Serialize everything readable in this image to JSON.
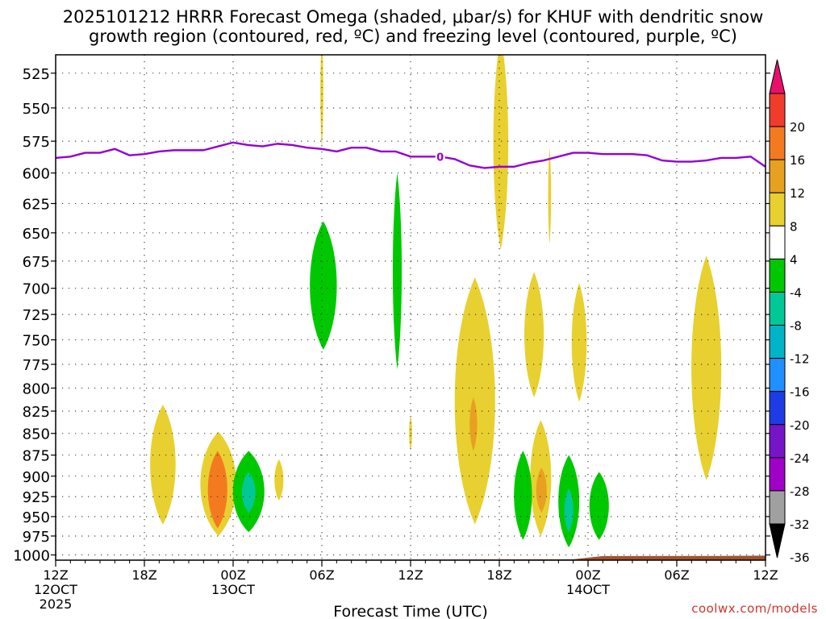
{
  "title_line1": "2025101212 HRRR Forecast Omega (shaded, μbar/s) for KHUF with dendritic snow",
  "title_line2": "growth region (contoured, red, ºC) and freezing level (contoured, purple, ºC)",
  "credit": "coolwx.com/models",
  "chart_data": {
    "type": "heatmap",
    "title": "2025101212 HRRR Forecast Omega (shaded, μbar/s) for KHUF with dendritic snow growth region (contoured, red, ºC) and freezing level (contoured, purple, ºC)",
    "xlabel": "Forecast Time (UTC)",
    "ylabel": "",
    "xlim": [
      0,
      48
    ],
    "ylim_pressure_mb": [
      1000,
      500
    ],
    "x_ticks": [
      {
        "hour": 0,
        "lines": [
          "12Z",
          "12OCT",
          "2025"
        ]
      },
      {
        "hour": 6,
        "lines": [
          "18Z"
        ]
      },
      {
        "hour": 12,
        "lines": [
          "00Z",
          "13OCT"
        ]
      },
      {
        "hour": 18,
        "lines": [
          "06Z"
        ]
      },
      {
        "hour": 24,
        "lines": [
          "12Z"
        ]
      },
      {
        "hour": 30,
        "lines": [
          "18Z"
        ]
      },
      {
        "hour": 36,
        "lines": [
          "00Z",
          "14OCT"
        ]
      },
      {
        "hour": 42,
        "lines": [
          "06Z"
        ]
      },
      {
        "hour": 48,
        "lines": [
          "12Z"
        ]
      }
    ],
    "y_ticks": [
      "525",
      "550",
      "575",
      "600",
      "625",
      "650",
      "675",
      "700",
      "725",
      "750",
      "775",
      "800",
      "825",
      "850",
      "875",
      "900",
      "925",
      "950",
      "975",
      "1000"
    ],
    "colorbar": {
      "labels": [
        "20",
        "16",
        "12",
        "8",
        "4",
        "-4",
        "-8",
        "-12",
        "-16",
        "-20",
        "-24",
        "-28",
        "-32",
        "-36"
      ],
      "colors": [
        "#e8106a",
        "#f03c2c",
        "#f47a20",
        "#e8a020",
        "#e8d030",
        "#ffffff",
        "#00c800",
        "#00c896",
        "#00b4c8",
        "#1e90ff",
        "#1e3ce6",
        "#7814c8",
        "#a000c8",
        "#a0a0a0",
        "#000000"
      ]
    },
    "freezing_level": {
      "label": "0",
      "color": "#9400d3",
      "hours": [
        0,
        1,
        2,
        3,
        4,
        5,
        6,
        7,
        8,
        9,
        10,
        11,
        12,
        13,
        14,
        15,
        16,
        17,
        18,
        19,
        20,
        21,
        22,
        23,
        24,
        25,
        26,
        27,
        28,
        29,
        30,
        31,
        32,
        33,
        34,
        35,
        36,
        37,
        38,
        39,
        40,
        41,
        42,
        43,
        44,
        45,
        46,
        47,
        48
      ],
      "pressure": [
        588,
        587,
        584,
        584,
        581,
        586,
        585,
        583,
        582,
        582,
        582,
        579,
        576,
        578,
        579,
        577,
        578,
        580,
        581,
        583,
        580,
        580,
        583,
        583,
        587,
        587,
        587,
        589,
        594,
        596,
        595,
        595,
        592,
        590,
        587,
        584,
        584,
        585,
        585,
        585,
        586,
        590,
        591,
        591,
        590,
        588,
        588,
        587,
        595
      ]
    },
    "omega_regions": [
      {
        "value": 4,
        "color": "#e8d030",
        "hours": [
          17.9,
          18.1
        ],
        "pressure": [
          500,
          580
        ],
        "note": "ascent column"
      },
      {
        "value": 4,
        "color": "#e8d030",
        "hours": [
          29.6,
          30.6
        ],
        "pressure": [
          500,
          665
        ]
      },
      {
        "value": 4,
        "color": "#e8d030",
        "hours": [
          33.3,
          33.5
        ],
        "pressure": [
          580,
          660
        ]
      },
      {
        "value": 4,
        "color": "#e8d030",
        "hours": [
          31.7,
          33.0
        ],
        "pressure": [
          685,
          810
        ]
      },
      {
        "value": 4,
        "color": "#e8d030",
        "hours": [
          34.9,
          35.9
        ],
        "pressure": [
          695,
          815
        ]
      },
      {
        "value": 4,
        "color": "#e8d030",
        "hours": [
          43.0,
          45.0
        ],
        "pressure": [
          670,
          905
        ]
      },
      {
        "value": 4,
        "color": "#e8d030",
        "hours": [
          27.0,
          29.7
        ],
        "pressure": [
          690,
          960
        ]
      },
      {
        "value": 8,
        "color": "#e8a020",
        "hours": [
          28.0,
          28.5
        ],
        "pressure": [
          810,
          870
        ]
      },
      {
        "value": 4,
        "color": "#e8d030",
        "hours": [
          32.1,
          33.5
        ],
        "pressure": [
          835,
          975
        ]
      },
      {
        "value": 8,
        "color": "#e8a020",
        "hours": [
          32.5,
          33.2
        ],
        "pressure": [
          890,
          945
        ]
      },
      {
        "value": 4,
        "color": "#e8d030",
        "hours": [
          6.4,
          8.1
        ],
        "pressure": [
          818,
          960
        ]
      },
      {
        "value": 4,
        "color": "#e8d030",
        "hours": [
          9.8,
          12.2
        ],
        "pressure": [
          848,
          975
        ]
      },
      {
        "value": 8,
        "color": "#f47a20",
        "hours": [
          10.3,
          11.6
        ],
        "pressure": [
          870,
          965
        ]
      },
      {
        "value": 12,
        "color": "#f47a20",
        "hours": [
          10.5,
          11.4
        ],
        "pressure": [
          880,
          940
        ]
      },
      {
        "value": 4,
        "color": "#e8d030",
        "hours": [
          14.8,
          15.4
        ],
        "pressure": [
          880,
          930
        ]
      },
      {
        "value": 4,
        "color": "#e8d030",
        "hours": [
          23.9,
          24.1
        ],
        "pressure": [
          830,
          870
        ]
      },
      {
        "value": -4,
        "color": "#00c800",
        "hours": [
          17.2,
          19.0
        ],
        "pressure": [
          640,
          760
        ]
      },
      {
        "value": -4,
        "color": "#00c800",
        "hours": [
          22.8,
          23.4
        ],
        "pressure": [
          600,
          780
        ]
      },
      {
        "value": -4,
        "color": "#00c800",
        "hours": [
          12.0,
          14.1
        ],
        "pressure": [
          870,
          970
        ]
      },
      {
        "value": -8,
        "color": "#00c896",
        "hours": [
          12.6,
          13.5
        ],
        "pressure": [
          895,
          945
        ]
      },
      {
        "value": -4,
        "color": "#00c800",
        "hours": [
          31.0,
          32.2
        ],
        "pressure": [
          870,
          980
        ]
      },
      {
        "value": -4,
        "color": "#00c800",
        "hours": [
          34.0,
          35.4
        ],
        "pressure": [
          875,
          990
        ]
      },
      {
        "value": -8,
        "color": "#00c896",
        "hours": [
          34.4,
          35.0
        ],
        "pressure": [
          915,
          970
        ]
      },
      {
        "value": -4,
        "color": "#00c800",
        "hours": [
          36.1,
          37.4
        ],
        "pressure": [
          895,
          980
        ]
      }
    ],
    "terrain": {
      "color": "#a0522d",
      "surface_pressure_range": [
        1001,
        1007
      ]
    }
  }
}
